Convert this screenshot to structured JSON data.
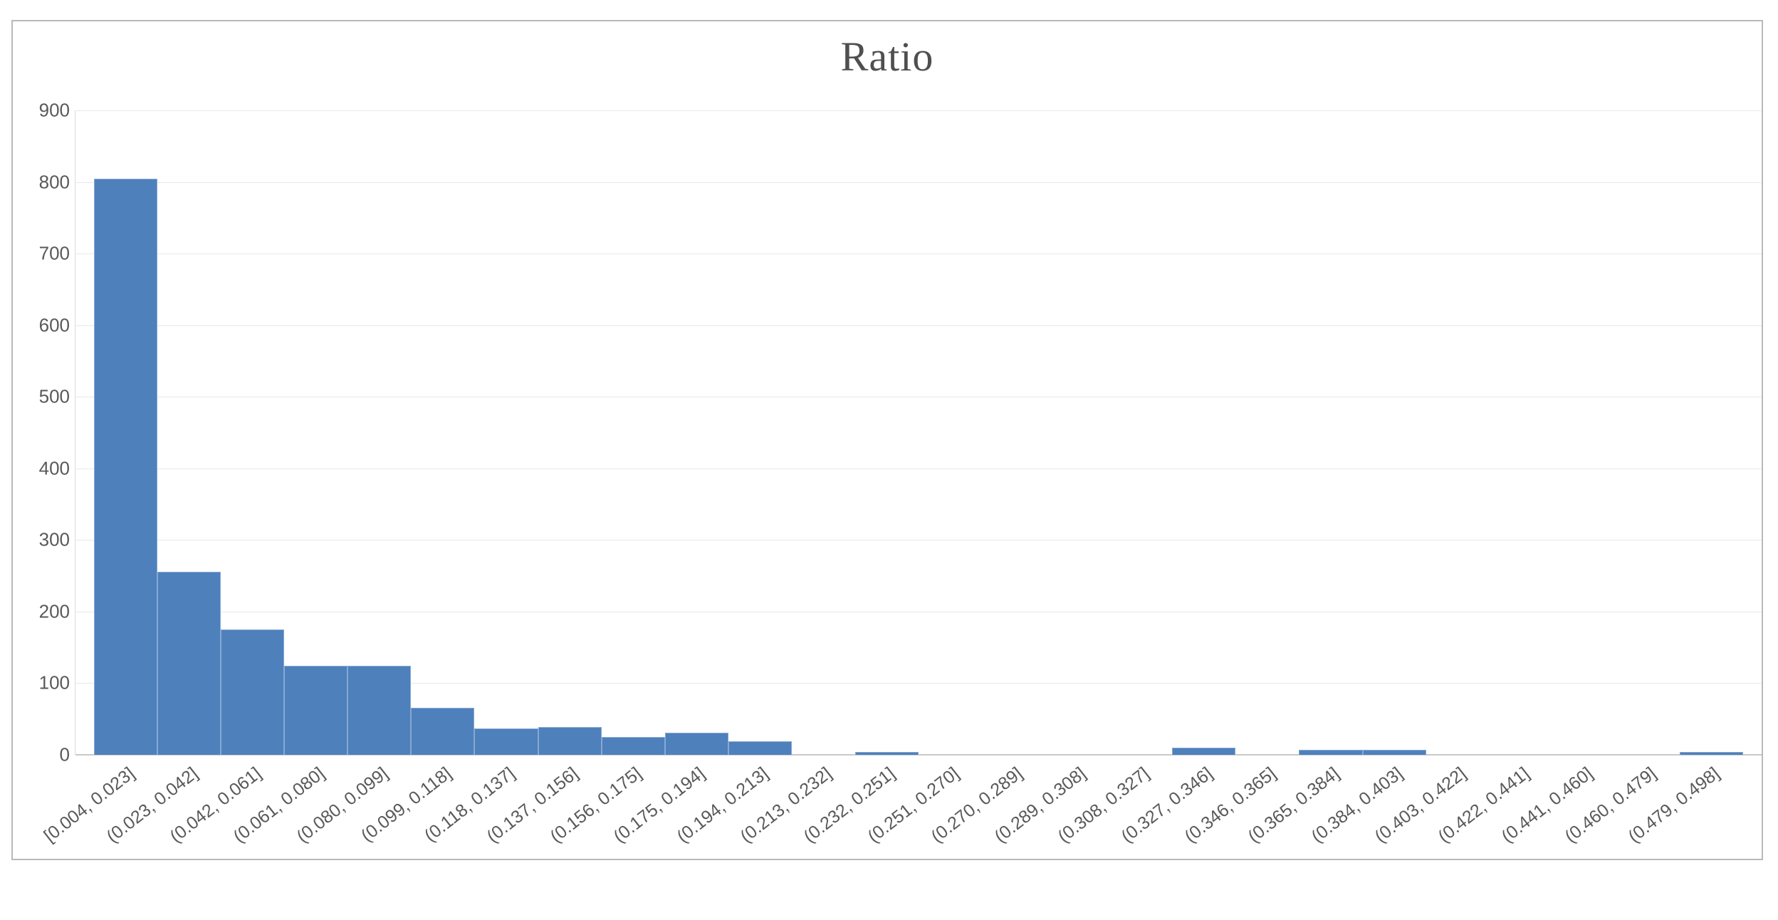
{
  "chart_data": {
    "type": "bar",
    "subtype": "histogram",
    "title": "Ratio",
    "categories": [
      "[0.004, 0.023]",
      "(0.023, 0.042]",
      "(0.042, 0.061]",
      "(0.061, 0.080]",
      "(0.080, 0.099]",
      "(0.099, 0.118]",
      "(0.118, 0.137]",
      "(0.137, 0.156]",
      "(0.156, 0.175]",
      "(0.175, 0.194]",
      "(0.194, 0.213]",
      "(0.213, 0.232]",
      "(0.232, 0.251]",
      "(0.251, 0.270]",
      "(0.270, 0.289]",
      "(0.289, 0.308]",
      "(0.308, 0.327]",
      "(0.327, 0.346]",
      "(0.346, 0.365]",
      "(0.365, 0.384]",
      "(0.384, 0.403]",
      "(0.403, 0.422]",
      "(0.422, 0.441]",
      "(0.441, 0.460]",
      "(0.460, 0.479]",
      "(0.479, 0.498]"
    ],
    "values": [
      805,
      256,
      175,
      124,
      124,
      66,
      37,
      39,
      25,
      31,
      19,
      0,
      4,
      0,
      0,
      0,
      0,
      10,
      0,
      7,
      7,
      0,
      0,
      0,
      0,
      4
    ],
    "xlabel": "",
    "ylabel": "",
    "ylim": [
      0,
      900
    ],
    "ytick_step": 100,
    "yticks": [
      "0",
      "100",
      "200",
      "300",
      "400",
      "500",
      "600",
      "700",
      "800",
      "900"
    ],
    "grid": "horizontal",
    "legend": null,
    "x_label_rotation_deg": -38,
    "colors": {
      "bar_fill": "#4e80bc",
      "bar_border": "#86a9d2",
      "gridline": "#e8e8e8",
      "axis_line": "#c9c9c9",
      "tick_text": "#595959",
      "title_text": "#4f4f4f",
      "chart_border": "#b9b9b9"
    }
  }
}
